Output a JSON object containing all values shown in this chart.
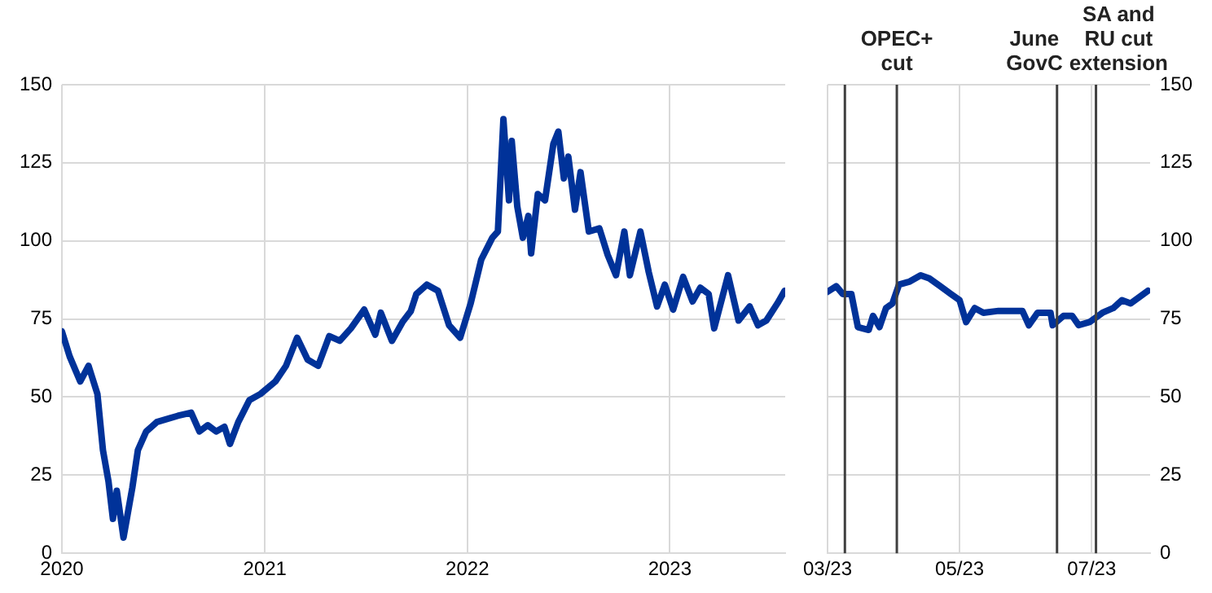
{
  "chart_data": [
    {
      "type": "line",
      "x": [
        "2020-01-01",
        "2020-01-15",
        "2020-02-03",
        "2020-02-18",
        "2020-03-05",
        "2020-03-15",
        "2020-03-25",
        "2020-04-02",
        "2020-04-09",
        "2020-04-21",
        "2020-04-28",
        "2020-05-07",
        "2020-05-17",
        "2020-06-01",
        "2020-06-20",
        "2020-07-28",
        "2020-08-21",
        "2020-09-05",
        "2020-09-20",
        "2020-10-05",
        "2020-10-20",
        "2020-10-30",
        "2020-11-14",
        "2020-12-04",
        "2020-12-24",
        "2021-01-20",
        "2021-02-08",
        "2021-02-28",
        "2021-03-19",
        "2021-04-07",
        "2021-04-27",
        "2021-05-16",
        "2021-06-05",
        "2021-06-29",
        "2021-07-19",
        "2021-07-29",
        "2021-08-18",
        "2021-09-06",
        "2021-09-21",
        "2021-10-01",
        "2021-10-20",
        "2021-11-09",
        "2021-11-29",
        "2021-12-19",
        "2022-01-07",
        "2022-01-26",
        "2022-02-15",
        "2022-02-25",
        "2022-03-07",
        "2022-03-17",
        "2022-03-22",
        "2022-04-01",
        "2022-04-11",
        "2022-04-21",
        "2022-04-26",
        "2022-05-08",
        "2022-05-21",
        "2022-06-05",
        "2022-06-14",
        "2022-06-24",
        "2022-07-02",
        "2022-07-14",
        "2022-07-24",
        "2022-08-08",
        "2022-08-27",
        "2022-09-11",
        "2022-09-26",
        "2022-10-11",
        "2022-10-21",
        "2022-11-09",
        "2022-11-24",
        "2022-12-09",
        "2022-12-23",
        "2023-01-07",
        "2023-01-25",
        "2023-02-11",
        "2023-02-25",
        "2023-03-12",
        "2023-03-22",
        "2023-04-16",
        "2023-05-05",
        "2023-05-25",
        "2023-06-09",
        "2023-06-24",
        "2023-07-14",
        "2023-07-27"
      ],
      "series": [
        {
          "color": "#003299",
          "values": [
            71,
            63,
            55,
            60,
            51,
            33,
            23,
            11,
            20,
            5,
            12,
            21,
            33,
            39,
            42,
            44,
            45,
            39,
            41,
            39,
            40.5,
            35,
            42,
            49,
            51,
            55,
            60,
            69,
            62,
            60,
            69.5,
            68,
            72,
            78,
            70,
            77,
            68,
            74,
            77.5,
            83,
            86,
            84,
            73,
            69,
            80,
            94,
            101,
            103,
            139,
            113,
            132,
            111,
            101,
            108,
            96,
            115,
            113,
            131,
            135,
            120,
            127,
            110,
            122,
            103,
            104,
            95.5,
            89,
            103,
            89,
            103,
            90,
            79,
            86,
            78,
            88.5,
            80.6,
            85,
            83,
            72,
            89,
            74.5,
            79,
            73,
            74.5,
            80,
            84
          ]
        }
      ],
      "xlim": [
        "2020-01-01",
        "2023-07-28"
      ],
      "xticks": [
        {
          "value": "2020-01-01",
          "label": "2020"
        },
        {
          "value": "2021-01-01",
          "label": "2021"
        },
        {
          "value": "2022-01-01",
          "label": "2022"
        },
        {
          "value": "2023-01-01",
          "label": "2023"
        }
      ],
      "ylim": [
        0,
        150
      ],
      "yticks": [
        0,
        25,
        50,
        75,
        100,
        125,
        150
      ],
      "grid": true,
      "legend": false,
      "marker": "none",
      "line_style": "solid"
    },
    {
      "type": "line",
      "x": [
        "2023-03-01",
        "2023-03-05",
        "2023-03-08",
        "2023-03-12",
        "2023-03-15",
        "2023-03-20",
        "2023-03-22",
        "2023-03-25",
        "2023-03-28",
        "2023-03-31",
        "2023-04-03",
        "2023-04-08",
        "2023-04-13",
        "2023-04-17",
        "2023-04-22",
        "2023-04-27",
        "2023-05-01",
        "2023-05-04",
        "2023-05-08",
        "2023-05-12",
        "2023-05-19",
        "2023-05-26",
        "2023-05-30",
        "2023-06-02",
        "2023-06-06",
        "2023-06-12",
        "2023-06-13",
        "2023-06-18",
        "2023-06-22",
        "2023-06-25",
        "2023-06-30",
        "2023-07-06",
        "2023-07-11",
        "2023-07-15",
        "2023-07-19",
        "2023-07-23",
        "2023-07-27"
      ],
      "series": [
        {
          "color": "#003299",
          "values": [
            83.7,
            85.5,
            83,
            83,
            72.4,
            71.5,
            76,
            72.4,
            78.5,
            80,
            86,
            87,
            89,
            88,
            85.5,
            83,
            81,
            74,
            78.5,
            77,
            77.6,
            77.6,
            77.6,
            73,
            77,
            77,
            73,
            76,
            76,
            73,
            74,
            77,
            78.5,
            81,
            80,
            82,
            84
          ]
        }
      ],
      "xlim": [
        "2023-03-01",
        "2023-07-28"
      ],
      "xticks": [
        {
          "value": "2023-03-01",
          "label": "03/23"
        },
        {
          "value": "2023-05-01",
          "label": "05/23"
        },
        {
          "value": "2023-07-01",
          "label": "07/23"
        }
      ],
      "ylim": [
        0,
        150
      ],
      "yticks": [
        0,
        25,
        50,
        75,
        100,
        125,
        150
      ],
      "grid": true,
      "legend": false,
      "marker": "none",
      "line_style": "solid",
      "ref_lines": [
        {
          "axis": "x",
          "value": "2023-03-09",
          "color": "#404040"
        },
        {
          "axis": "x",
          "value": "2023-04-02",
          "label": "OPEC+ cut",
          "color": "#404040"
        },
        {
          "axis": "x",
          "value": "2023-06-15",
          "label": "June GovC",
          "color": "#404040"
        },
        {
          "axis": "x",
          "value": "2023-07-03",
          "label": "SA and RU cut extension",
          "color": "#404040"
        }
      ]
    }
  ]
}
